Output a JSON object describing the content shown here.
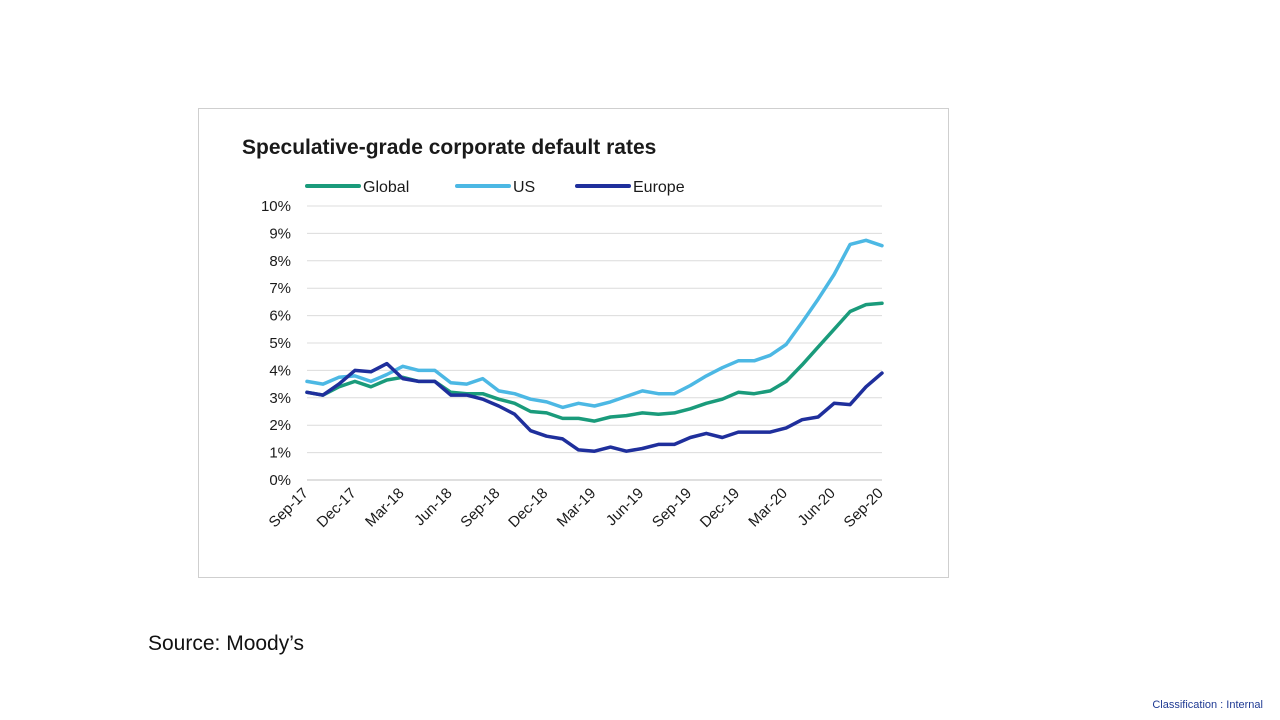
{
  "chart_data": {
    "type": "line",
    "title": "Speculative-grade corporate default rates",
    "xlabel": "",
    "ylabel": "",
    "ylim": [
      0,
      10
    ],
    "y_ticks": [
      "0%",
      "1%",
      "2%",
      "3%",
      "4%",
      "5%",
      "6%",
      "7%",
      "8%",
      "9%",
      "10%"
    ],
    "x_tick_labels": [
      "Sep-17",
      "Dec-17",
      "Mar-18",
      "Jun-18",
      "Sep-18",
      "Dec-18",
      "Mar-19",
      "Jun-19",
      "Sep-19",
      "Dec-19",
      "Mar-20",
      "Jun-20",
      "Sep-20"
    ],
    "grid": true,
    "legend_position": "top",
    "series": [
      {
        "name": "Global",
        "color": "#1a9b7b",
        "values": [
          3.2,
          3.1,
          3.4,
          3.6,
          3.4,
          3.65,
          3.75,
          3.6,
          3.6,
          3.2,
          3.15,
          3.15,
          2.95,
          2.8,
          2.5,
          2.45,
          2.25,
          2.25,
          2.15,
          2.3,
          2.35,
          2.45,
          2.4,
          2.45,
          2.6,
          2.8,
          2.95,
          3.2,
          3.15,
          3.25,
          3.6,
          4.2,
          4.85,
          5.5,
          6.15,
          6.4,
          6.45
        ]
      },
      {
        "name": "US",
        "color": "#4cb8e4",
        "values": [
          3.6,
          3.5,
          3.75,
          3.8,
          3.6,
          3.85,
          4.15,
          4.0,
          4.0,
          3.55,
          3.5,
          3.7,
          3.25,
          3.15,
          2.95,
          2.85,
          2.65,
          2.8,
          2.7,
          2.85,
          3.05,
          3.25,
          3.15,
          3.15,
          3.45,
          3.8,
          4.1,
          4.35,
          4.35,
          4.55,
          4.95,
          5.75,
          6.6,
          7.5,
          8.6,
          8.75,
          8.55
        ]
      },
      {
        "name": "Europe",
        "color": "#1f2f9c",
        "values": [
          3.2,
          3.1,
          3.5,
          4.0,
          3.95,
          4.25,
          3.7,
          3.6,
          3.6,
          3.1,
          3.1,
          2.95,
          2.7,
          2.4,
          1.8,
          1.6,
          1.5,
          1.1,
          1.05,
          1.2,
          1.05,
          1.15,
          1.3,
          1.3,
          1.55,
          1.7,
          1.55,
          1.75,
          1.75,
          1.75,
          1.9,
          2.2,
          2.3,
          2.8,
          2.75,
          3.4,
          3.9
        ]
      }
    ]
  },
  "footer": {
    "source": "Source: Moody’s",
    "classification": "Classification : Internal"
  }
}
